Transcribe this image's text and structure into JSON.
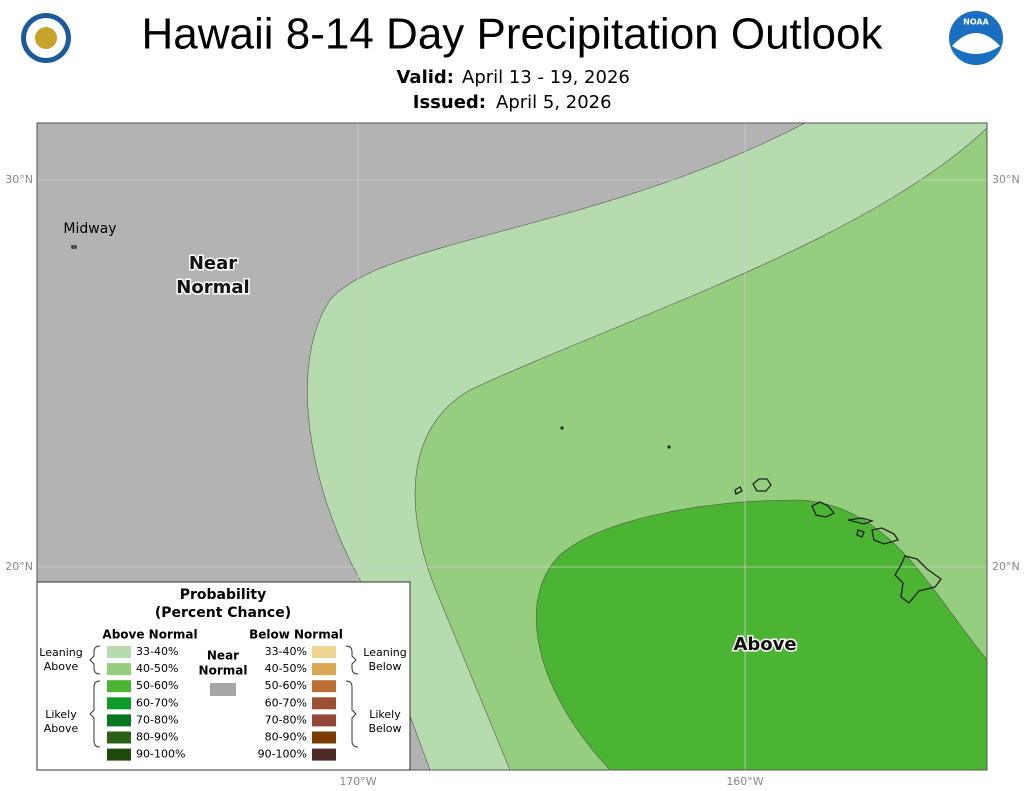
{
  "header": {
    "title": "Hawaii 8-14 Day Precipitation Outlook",
    "valid_label": "Valid:",
    "valid_date": "April 13 - 19, 2026",
    "issued_label": "Issued:",
    "issued_date": "April 5, 2026",
    "noaa_logo": "NOAA"
  },
  "map": {
    "labels": {
      "midway": "Midway",
      "near_normal": [
        "Near",
        "Normal"
      ],
      "above": "Above"
    },
    "lat_labels": [
      "30°N",
      "20°N"
    ],
    "lon_labels": [
      "170°W",
      "160°W"
    ]
  },
  "legend": {
    "title": "Probability",
    "subtitle": "(Percent Chance)",
    "above_header": "Above Normal",
    "below_header": "Below Normal",
    "leaning_above": [
      "Leaning",
      "Above"
    ],
    "likely_above": [
      "Likely",
      "Above"
    ],
    "near": [
      "Near",
      "Normal"
    ],
    "leaning_below": [
      "Leaning",
      "Below"
    ],
    "likely_below": [
      "Likely",
      "Below"
    ],
    "levels": [
      "33-40%",
      "40-50%",
      "50-60%",
      "60-70%",
      "70-80%",
      "80-90%",
      "90-100%"
    ]
  }
}
